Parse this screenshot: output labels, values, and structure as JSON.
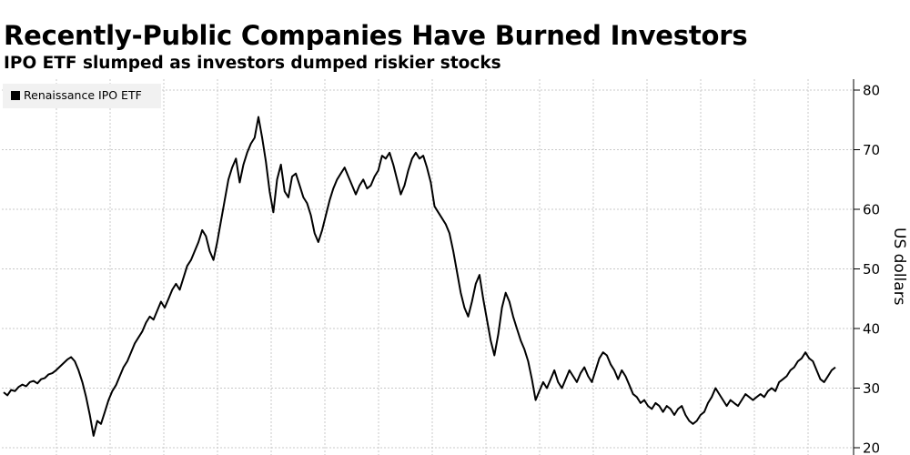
{
  "title": "Recently-Public Companies Have Burned Investors",
  "subtitle": "IPO ETF slumped as investors dumped riskier stocks",
  "chart_data": {
    "type": "line",
    "ylabel": "US dollars",
    "ylim": [
      20,
      80
    ],
    "yticks": [
      20,
      30,
      40,
      50,
      60,
      70,
      80
    ],
    "grid": true,
    "legend_position": "top-left",
    "series": [
      {
        "name": "Renaissance IPO ETF",
        "color": "#000000",
        "values": [
          29.3,
          28.8,
          29.7,
          29.5,
          30.2,
          30.6,
          30.3,
          31.0,
          31.2,
          30.8,
          31.5,
          31.7,
          32.3,
          32.5,
          33.0,
          33.6,
          34.2,
          34.8,
          35.2,
          34.5,
          33.0,
          31.0,
          28.5,
          25.5,
          22.0,
          24.5,
          24.0,
          26.0,
          28.0,
          29.5,
          30.5,
          32.0,
          33.5,
          34.5,
          36.0,
          37.5,
          38.5,
          39.5,
          41.0,
          42.0,
          41.5,
          43.0,
          44.5,
          43.5,
          45.0,
          46.5,
          47.5,
          46.5,
          48.5,
          50.5,
          51.5,
          53.0,
          54.5,
          56.5,
          55.5,
          53.0,
          51.5,
          54.5,
          58.0,
          61.5,
          65.0,
          67.0,
          68.5,
          64.5,
          67.5,
          69.5,
          71.0,
          72.0,
          75.5,
          72.0,
          68.0,
          63.0,
          59.5,
          65.0,
          67.5,
          63.0,
          62.0,
          65.5,
          66.0,
          64.0,
          62.0,
          61.0,
          59.0,
          56.0,
          54.5,
          56.5,
          59.0,
          61.5,
          63.5,
          65.0,
          66.0,
          67.0,
          65.5,
          64.0,
          62.5,
          64.0,
          65.0,
          63.5,
          64.0,
          65.5,
          66.5,
          69.0,
          68.5,
          69.5,
          67.5,
          65.0,
          62.5,
          64.0,
          66.5,
          68.5,
          69.5,
          68.5,
          69.0,
          67.0,
          64.5,
          60.5,
          59.5,
          58.5,
          57.5,
          56.0,
          53.0,
          49.5,
          46.0,
          43.5,
          42.0,
          44.5,
          47.5,
          49.0,
          45.0,
          41.5,
          38.0,
          35.5,
          39.0,
          43.5,
          46.0,
          44.5,
          42.0,
          40.0,
          38.0,
          36.5,
          34.5,
          31.5,
          28.0,
          29.5,
          31.0,
          30.0,
          31.5,
          33.0,
          31.0,
          30.0,
          31.5,
          33.0,
          32.0,
          31.0,
          32.5,
          33.5,
          32.0,
          31.0,
          33.0,
          35.0,
          36.0,
          35.5,
          34.0,
          33.0,
          31.5,
          33.0,
          32.0,
          30.5,
          29.0,
          28.5,
          27.5,
          28.0,
          27.0,
          26.5,
          27.5,
          27.0,
          26.0,
          27.0,
          26.5,
          25.5,
          26.5,
          27.0,
          25.5,
          24.5,
          24.0,
          24.5,
          25.5,
          26.0,
          27.5,
          28.5,
          30.0,
          29.0,
          28.0,
          27.0,
          28.0,
          27.5,
          27.0,
          28.0,
          29.0,
          28.5,
          28.0,
          28.5,
          29.0,
          28.5,
          29.5,
          30.0,
          29.5,
          31.0,
          31.5,
          32.0,
          33.0,
          33.5,
          34.5,
          35.0,
          36.0,
          35.0,
          34.5,
          33.0,
          31.5,
          31.0,
          32.0,
          33.0,
          33.5
        ]
      }
    ]
  }
}
